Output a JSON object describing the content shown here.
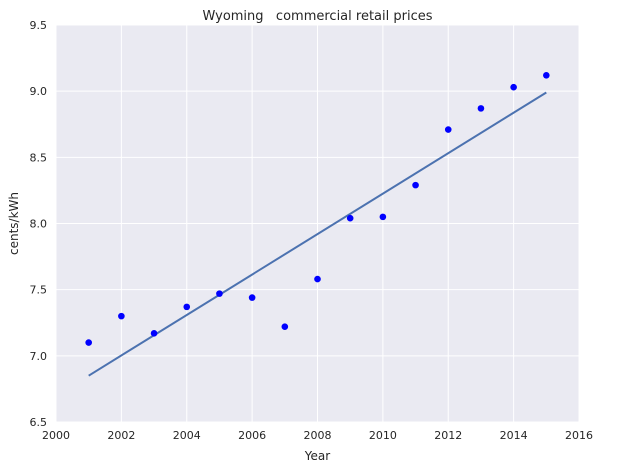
{
  "chart_data": {
    "type": "scatter",
    "title": "Wyoming   commercial retail prices",
    "xlabel": "Year",
    "ylabel": "cents/kWh",
    "xlim": [
      2000,
      2016
    ],
    "ylim": [
      6.5,
      9.5
    ],
    "xticks": [
      "2000",
      "2002",
      "2004",
      "2006",
      "2008",
      "2010",
      "2012",
      "2014",
      "2016"
    ],
    "yticks": [
      "6.5",
      "7.0",
      "7.5",
      "8.0",
      "8.5",
      "9.0",
      "9.5"
    ],
    "grid": true,
    "points": {
      "x": [
        2001,
        2002,
        2003,
        2004,
        2005,
        2006,
        2007,
        2008,
        2009,
        2010,
        2011,
        2012,
        2013,
        2014,
        2015
      ],
      "y": [
        7.1,
        7.3,
        7.17,
        7.37,
        7.47,
        7.44,
        7.22,
        7.58,
        8.04,
        8.05,
        8.29,
        8.71,
        8.87,
        9.03,
        9.12
      ]
    },
    "fit_line": {
      "x": [
        2001,
        2015
      ],
      "y": [
        6.85,
        8.99
      ]
    },
    "colors": {
      "background": "#eaeaf2",
      "grid": "#ffffff",
      "points": "#0000ff",
      "fit_line": "#4c72b0"
    }
  }
}
